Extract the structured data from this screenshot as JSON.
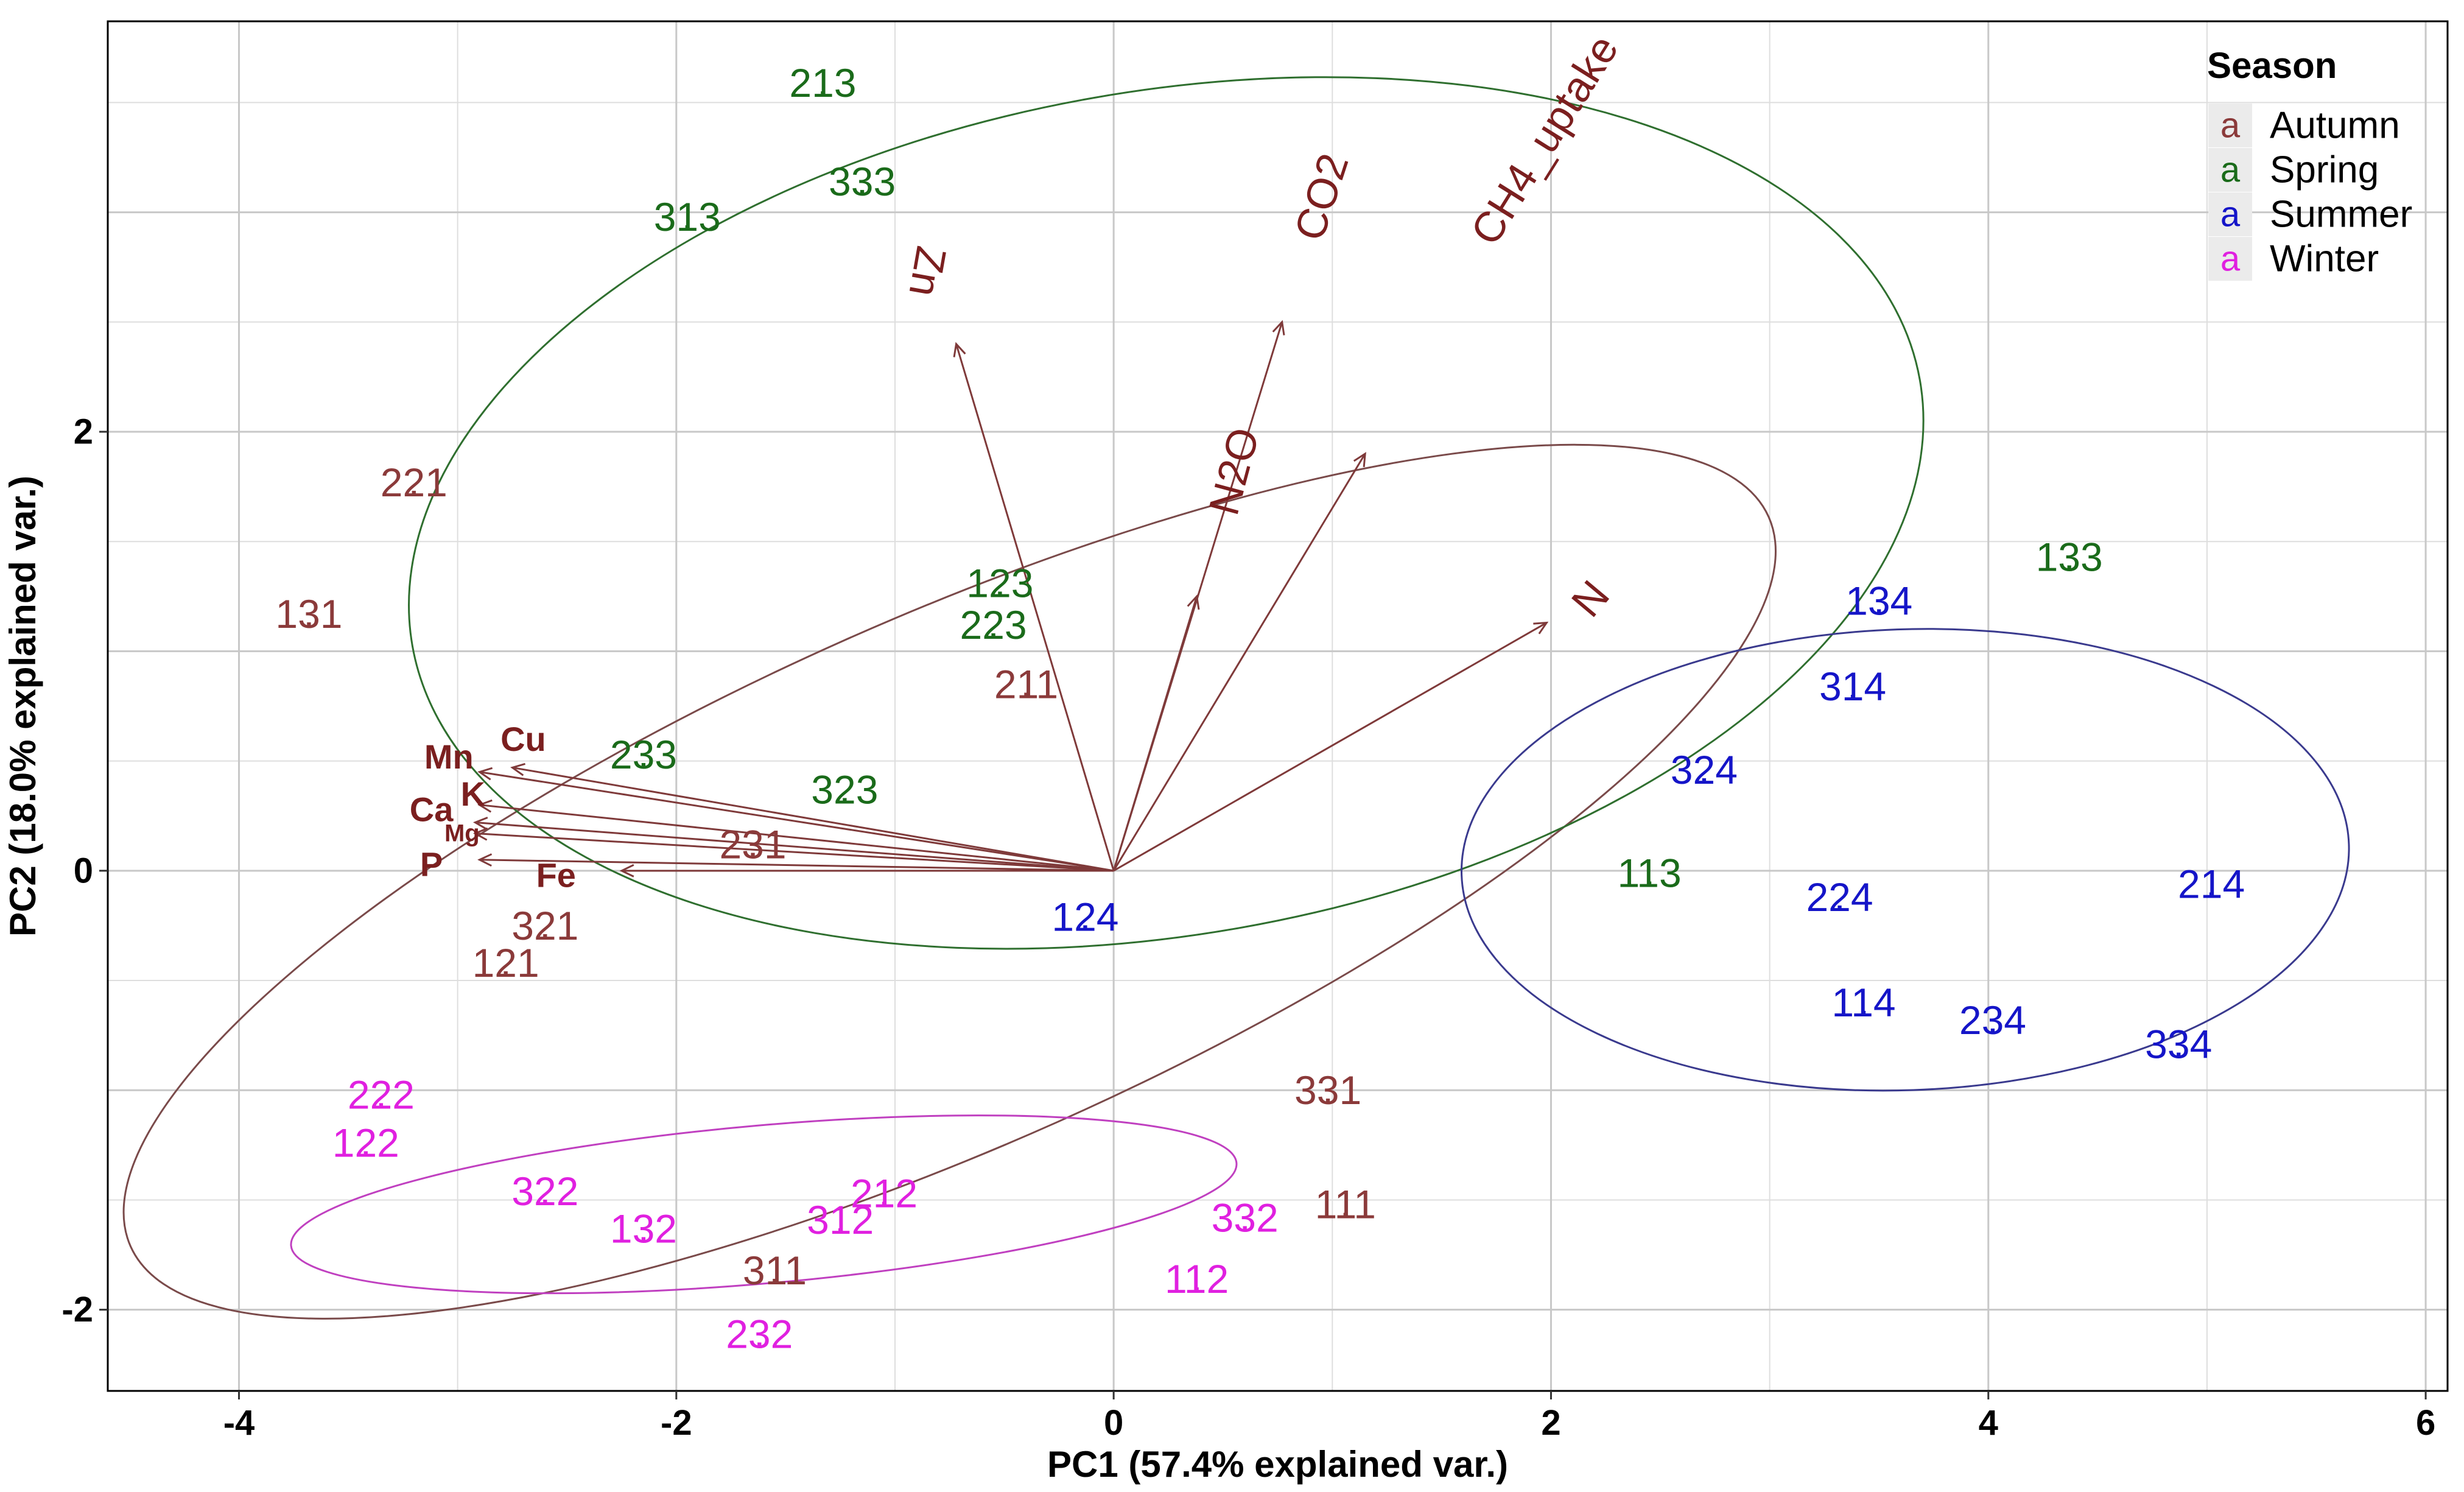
{
  "chart_data": {
    "type": "scatter",
    "subtype": "pca-biplot",
    "xlabel": "PC1 (57.4% explained var.)",
    "ylabel": "PC2 (18.0% explained var.)",
    "xlim": [
      -4.6,
      6.1
    ],
    "ylim": [
      -2.37,
      3.87
    ],
    "xticks": [
      -4,
      -2,
      0,
      2,
      4,
      6
    ],
    "yticks": [
      -2,
      0,
      2
    ],
    "xtick_labels": [
      "-4",
      "-2",
      "0",
      "2",
      "4",
      "6"
    ],
    "ytick_labels": [
      "-2",
      "0",
      "2"
    ],
    "legend": {
      "title": "Season",
      "position": "top-right",
      "key_glyph": "a",
      "entries": [
        {
          "name": "Autumn",
          "color": "#8b3a3a"
        },
        {
          "name": "Spring",
          "color": "#1a6b1a"
        },
        {
          "name": "Summer",
          "color": "#1515c8"
        },
        {
          "name": "Winter",
          "color": "#e020e0"
        }
      ]
    },
    "series": [
      {
        "name": "Autumn",
        "color": "#8b3a3a",
        "ellipse_color": "#7a4a4a",
        "ellipse": {
          "cx": -0.75,
          "cy": -0.05,
          "rx": 4.1,
          "ry": 1.2,
          "angle_deg": -24
        },
        "points": [
          {
            "label": "221",
            "x": -3.2,
            "y": 1.77
          },
          {
            "label": "131",
            "x": -3.68,
            "y": 1.17
          },
          {
            "label": "211",
            "x": -0.4,
            "y": 0.85
          },
          {
            "label": "231",
            "x": -1.65,
            "y": 0.12
          },
          {
            "label": "321",
            "x": -2.6,
            "y": -0.25
          },
          {
            "label": "121",
            "x": -2.78,
            "y": -0.42
          },
          {
            "label": "331",
            "x": 0.98,
            "y": -1.0
          },
          {
            "label": "111",
            "x": 1.06,
            "y": -1.52
          },
          {
            "label": "311",
            "x": -1.55,
            "y": -1.82
          }
        ]
      },
      {
        "name": "Spring",
        "color": "#1a6b1a",
        "ellipse_color": "#2f6f2f",
        "ellipse": {
          "cx": 0.24,
          "cy": 1.63,
          "rx": 3.5,
          "ry": 1.92,
          "angle_deg": -10
        },
        "points": [
          {
            "label": "213",
            "x": -1.33,
            "y": 3.59
          },
          {
            "label": "333",
            "x": -1.15,
            "y": 3.14
          },
          {
            "label": "313",
            "x": -1.95,
            "y": 2.98
          },
          {
            "label": "123",
            "x": -0.52,
            "y": 1.31
          },
          {
            "label": "223",
            "x": -0.55,
            "y": 1.12
          },
          {
            "label": "233",
            "x": -2.15,
            "y": 0.53
          },
          {
            "label": "323",
            "x": -1.23,
            "y": 0.37
          },
          {
            "label": "113",
            "x": 2.45,
            "y": -0.01
          },
          {
            "label": "133",
            "x": 4.37,
            "y": 1.43
          }
        ]
      },
      {
        "name": "Summer",
        "color": "#1515c8",
        "ellipse_color": "#3a3a8e",
        "ellipse": {
          "cx": 3.62,
          "cy": 0.05,
          "rx": 2.03,
          "ry": 1.05,
          "angle_deg": -2
        },
        "points": [
          {
            "label": "134",
            "x": 3.5,
            "y": 1.23
          },
          {
            "label": "314",
            "x": 3.38,
            "y": 0.84
          },
          {
            "label": "324",
            "x": 2.7,
            "y": 0.46
          },
          {
            "label": "224",
            "x": 3.32,
            "y": -0.12
          },
          {
            "label": "214",
            "x": 5.02,
            "y": -0.06
          },
          {
            "label": "114",
            "x": 3.43,
            "y": -0.6
          },
          {
            "label": "234",
            "x": 4.02,
            "y": -0.68
          },
          {
            "label": "334",
            "x": 4.87,
            "y": -0.79
          },
          {
            "label": "124",
            "x": -0.13,
            "y": -0.21
          }
        ]
      },
      {
        "name": "Winter",
        "color": "#e020e0",
        "ellipse_color": "#c040c0",
        "ellipse": {
          "cx": -1.6,
          "cy": -1.52,
          "rx": 2.17,
          "ry": 0.36,
          "angle_deg": -5
        },
        "points": [
          {
            "label": "222",
            "x": -3.35,
            "y": -1.02
          },
          {
            "label": "122",
            "x": -3.42,
            "y": -1.24
          },
          {
            "label": "322",
            "x": -2.6,
            "y": -1.46
          },
          {
            "label": "132",
            "x": -2.15,
            "y": -1.63
          },
          {
            "label": "212",
            "x": -1.05,
            "y": -1.47
          },
          {
            "label": "312",
            "x": -1.25,
            "y": -1.59
          },
          {
            "label": "332",
            "x": 0.6,
            "y": -1.58
          },
          {
            "label": "112",
            "x": 0.38,
            "y": -1.86
          },
          {
            "label": "232",
            "x": -1.62,
            "y": -2.11
          }
        ]
      }
    ],
    "loadings": {
      "color": "#7b1f1f",
      "origin": [
        0,
        0
      ],
      "vectors": [
        {
          "name": "Zn",
          "x": -0.72,
          "y": 2.4,
          "label_x": -0.85,
          "label_y": 2.73,
          "label_angle": 100,
          "bold": false
        },
        {
          "name": "CO2",
          "x": 0.77,
          "y": 2.5,
          "label_x": 0.95,
          "label_y": 3.07,
          "label_angle": -72,
          "bold": false
        },
        {
          "name": "CH4_uptake",
          "x": 1.15,
          "y": 1.9,
          "label_x": 1.97,
          "label_y": 3.33,
          "label_angle": -58,
          "bold": false
        },
        {
          "name": "N2O",
          "x": 0.38,
          "y": 1.25,
          "label_x": 0.55,
          "label_y": 1.82,
          "label_angle": -75,
          "bold": false
        },
        {
          "name": "N",
          "x": 1.98,
          "y": 1.13,
          "label_x": 2.18,
          "label_y": 1.24,
          "label_angle": -50,
          "bold": false
        },
        {
          "name": "Cu",
          "x": -2.75,
          "y": 0.47,
          "label_x": -2.7,
          "label_y": 0.6,
          "label_angle": 0,
          "bold": true
        },
        {
          "name": "Mn",
          "x": -2.9,
          "y": 0.45,
          "label_x": -3.04,
          "label_y": 0.52,
          "label_angle": 0,
          "bold": true
        },
        {
          "name": "K",
          "x": -2.9,
          "y": 0.3,
          "label_x": -2.93,
          "label_y": 0.35,
          "label_angle": 0,
          "bold": true
        },
        {
          "name": "Ca",
          "x": -2.92,
          "y": 0.22,
          "label_x": -3.12,
          "label_y": 0.28,
          "label_angle": 0,
          "bold": true
        },
        {
          "name": "Mg",
          "x": -2.92,
          "y": 0.17,
          "label_x": -2.98,
          "label_y": 0.17,
          "label_angle": 0,
          "bold": true,
          "small": true
        },
        {
          "name": "P",
          "x": -2.9,
          "y": 0.05,
          "label_x": -3.12,
          "label_y": 0.03,
          "label_angle": 0,
          "bold": true
        },
        {
          "name": "Fe",
          "x": -2.25,
          "y": 0.0,
          "label_x": -2.55,
          "label_y": -0.02,
          "label_angle": 0,
          "bold": true
        }
      ]
    }
  }
}
